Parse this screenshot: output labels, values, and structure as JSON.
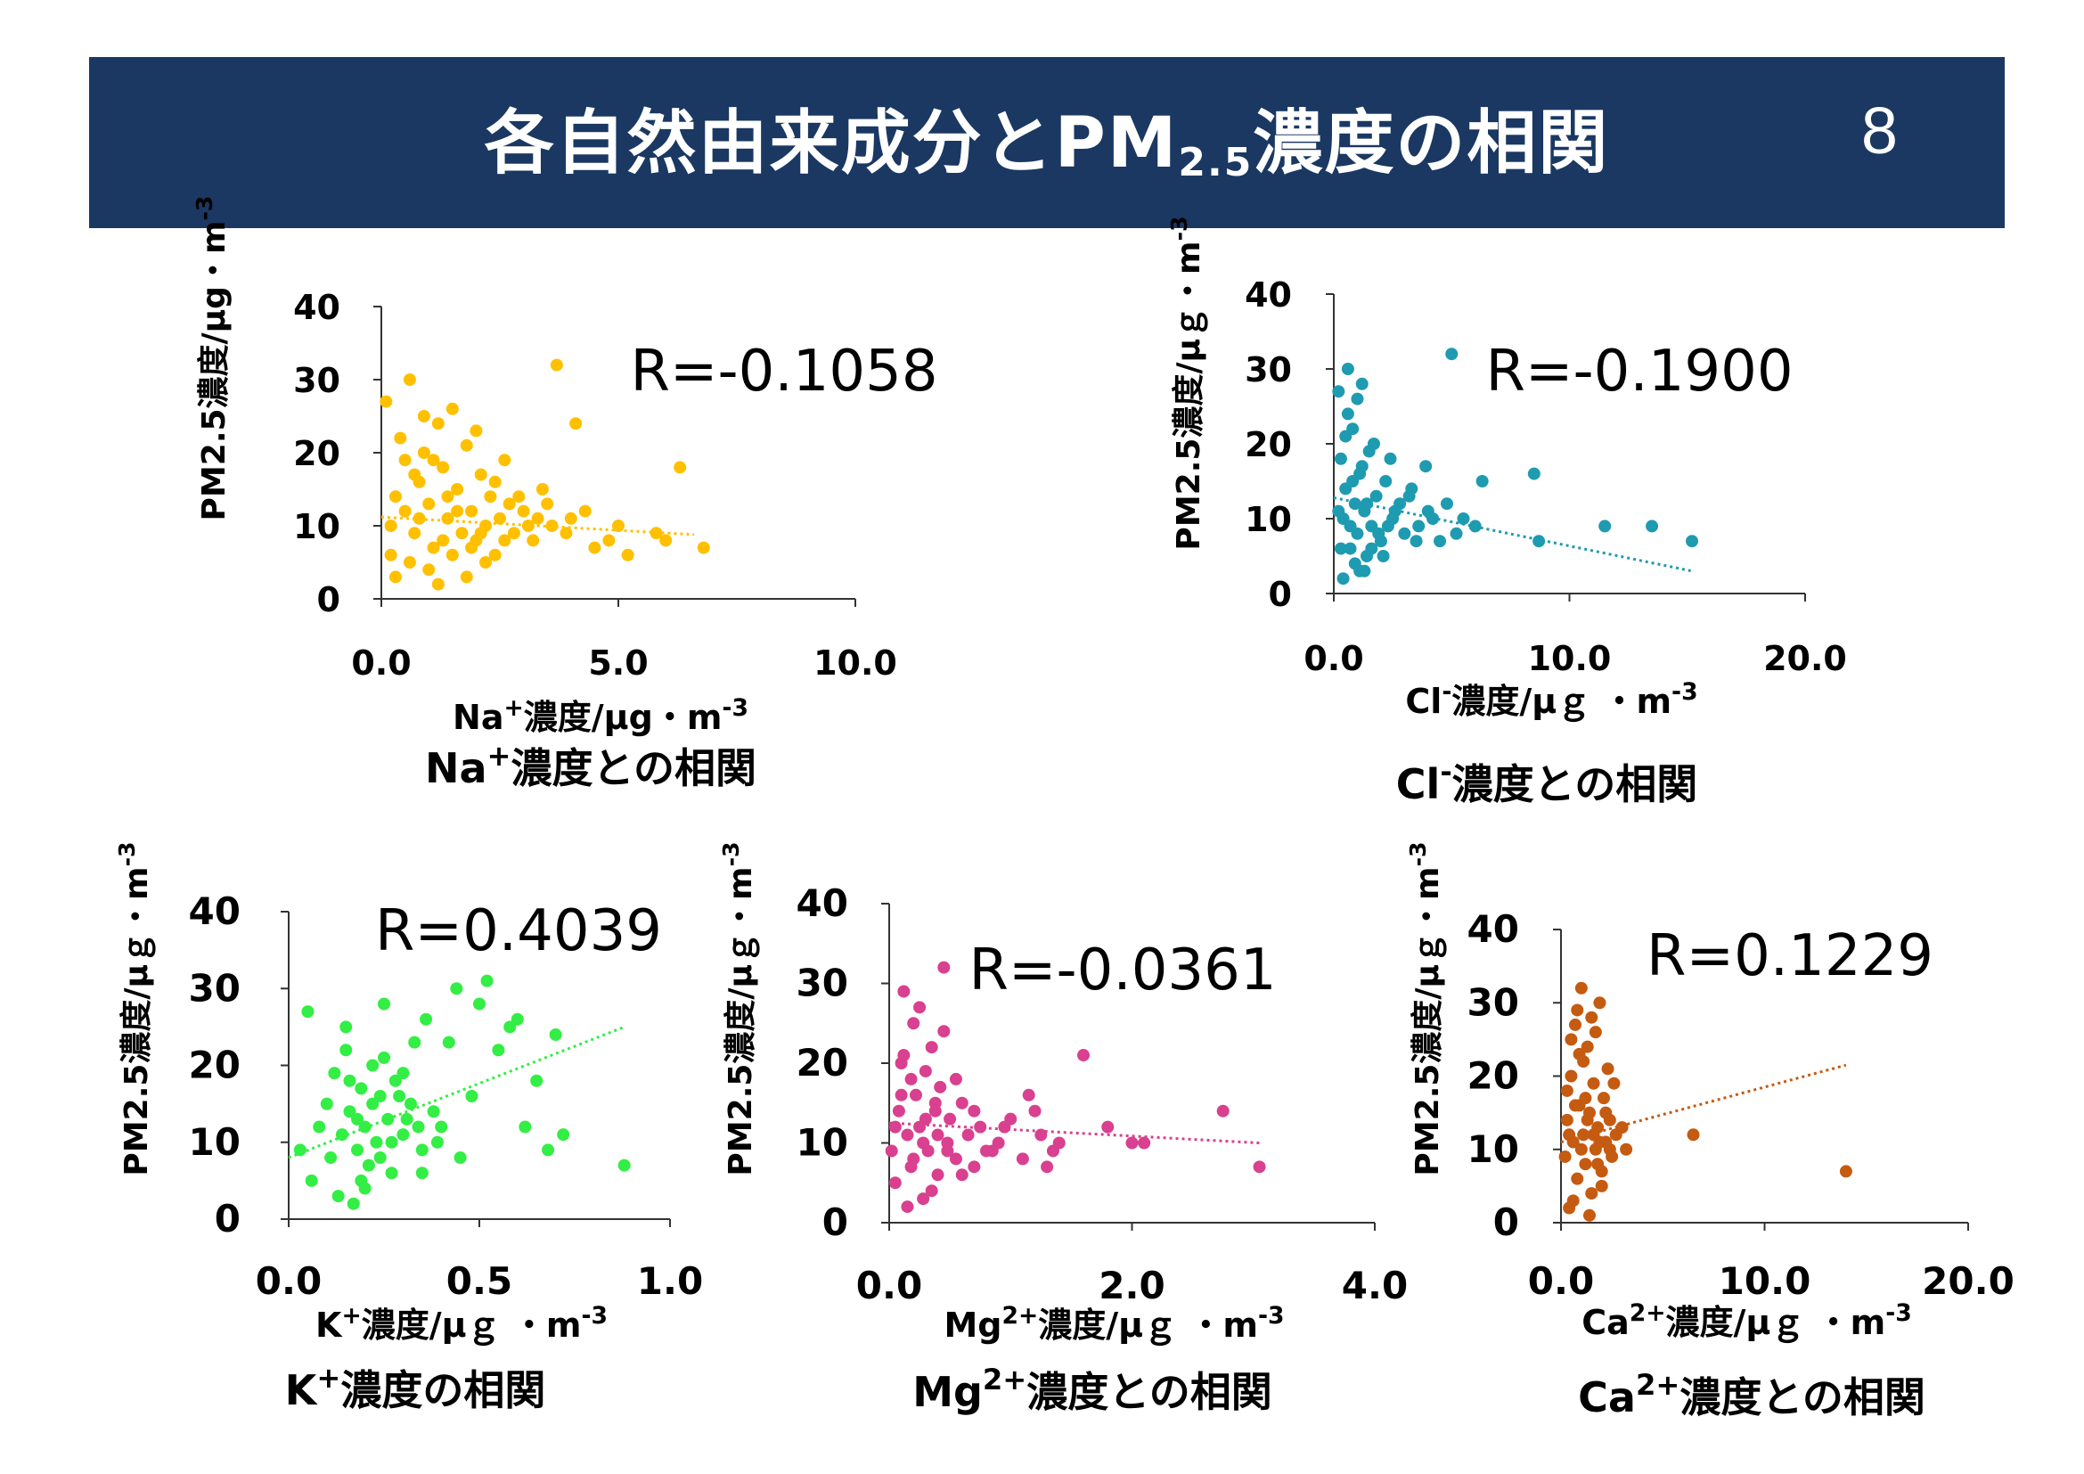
{
  "slide": {
    "title_main": "各自然由来成分とPM",
    "title_sub": "2.5",
    "title_tail": "濃度の相関",
    "page_number": "8"
  },
  "chart_data": [
    {
      "type": "scatter",
      "color": "#ffc000",
      "r_text": "R=-0.1058",
      "ylabel": "PM2.5濃度/μg・m-3",
      "xlabel": "Na+濃度/μg・m-3",
      "caption": "Na+濃度との相関",
      "xlim": [
        0,
        10
      ],
      "ylim": [
        0,
        40
      ],
      "xticks": [
        "0.0",
        "5.0",
        "10.0"
      ],
      "yticks": [
        "0",
        "10",
        "20",
        "30",
        "40"
      ],
      "trendline": [
        [
          0.0,
          11.2
        ],
        [
          6.6,
          8.8
        ]
      ],
      "points": [
        [
          0.1,
          27
        ],
        [
          0.2,
          10
        ],
        [
          0.3,
          14
        ],
        [
          0.5,
          12
        ],
        [
          0.6,
          5
        ],
        [
          0.7,
          9
        ],
        [
          0.8,
          16
        ],
        [
          0.9,
          20
        ],
        [
          1.0,
          13
        ],
        [
          1.1,
          7
        ],
        [
          1.2,
          24
        ],
        [
          1.3,
          18
        ],
        [
          1.4,
          11
        ],
        [
          1.5,
          6
        ],
        [
          1.6,
          15
        ],
        [
          1.7,
          9
        ],
        [
          1.8,
          21
        ],
        [
          1.9,
          12
        ],
        [
          2.0,
          8
        ],
        [
          2.1,
          17
        ],
        [
          2.2,
          10
        ],
        [
          2.3,
          14
        ],
        [
          2.4,
          6
        ],
        [
          2.5,
          11
        ],
        [
          2.6,
          19
        ],
        [
          2.8,
          9
        ],
        [
          3.0,
          12
        ],
        [
          3.2,
          8
        ],
        [
          3.4,
          15
        ],
        [
          3.6,
          10
        ],
        [
          3.7,
          32
        ],
        [
          4.0,
          11
        ],
        [
          4.1,
          24
        ],
        [
          4.5,
          7
        ],
        [
          5.0,
          10
        ],
        [
          5.2,
          6
        ],
        [
          5.8,
          9
        ],
        [
          6.0,
          8
        ],
        [
          6.3,
          18
        ],
        [
          6.8,
          7
        ],
        [
          0.4,
          22
        ],
        [
          0.6,
          30
        ],
        [
          0.9,
          25
        ],
        [
          1.0,
          4
        ],
        [
          1.2,
          2
        ],
        [
          1.5,
          26
        ],
        [
          1.8,
          3
        ],
        [
          2.0,
          23
        ],
        [
          2.2,
          5
        ],
        [
          2.7,
          13
        ],
        [
          0.3,
          3
        ],
        [
          0.7,
          17
        ],
        [
          1.1,
          19
        ],
        [
          1.3,
          8
        ],
        [
          1.6,
          12
        ],
        [
          1.9,
          7
        ],
        [
          2.4,
          16
        ],
        [
          2.9,
          14
        ],
        [
          3.3,
          11
        ],
        [
          3.9,
          9
        ],
        [
          0.2,
          6
        ],
        [
          0.5,
          19
        ],
        [
          0.8,
          11
        ],
        [
          1.4,
          14
        ],
        [
          2.1,
          9
        ],
        [
          2.6,
          8
        ],
        [
          3.1,
          10
        ],
        [
          3.5,
          13
        ],
        [
          4.3,
          12
        ],
        [
          4.8,
          8
        ]
      ]
    },
    {
      "type": "scatter",
      "color": "#1e9bb0",
      "r_text": "R=-0.1900",
      "ylabel": "PM2.5濃度/μｇ・m-3",
      "xlabel": "Cl-濃度/μｇ ・m-3",
      "caption": "Cl-濃度との相関",
      "xlim": [
        0,
        20
      ],
      "ylim": [
        0,
        40
      ],
      "xticks": [
        "0.0",
        "10.0",
        "20.0"
      ],
      "yticks": [
        "0",
        "10",
        "20",
        "30",
        "40"
      ],
      "trendline": [
        [
          0.0,
          12.8
        ],
        [
          15.2,
          3.0
        ]
      ],
      "points": [
        [
          0.2,
          27
        ],
        [
          0.3,
          18
        ],
        [
          0.4,
          10
        ],
        [
          0.5,
          14
        ],
        [
          0.6,
          30
        ],
        [
          0.7,
          6
        ],
        [
          0.8,
          22
        ],
        [
          0.9,
          12
        ],
        [
          1.0,
          8
        ],
        [
          1.1,
          16
        ],
        [
          1.2,
          28
        ],
        [
          1.3,
          11
        ],
        [
          1.4,
          5
        ],
        [
          1.5,
          19
        ],
        [
          1.6,
          9
        ],
        [
          1.8,
          13
        ],
        [
          2.0,
          7
        ],
        [
          2.2,
          15
        ],
        [
          2.5,
          10
        ],
        [
          2.8,
          12
        ],
        [
          3.0,
          8
        ],
        [
          3.3,
          14
        ],
        [
          3.6,
          9
        ],
        [
          4.0,
          11
        ],
        [
          4.5,
          7
        ],
        [
          5.0,
          32
        ],
        [
          5.5,
          10
        ],
        [
          6.0,
          9
        ],
        [
          6.3,
          15
        ],
        [
          8.5,
          16
        ],
        [
          8.7,
          7
        ],
        [
          11.5,
          9
        ],
        [
          13.5,
          9
        ],
        [
          15.2,
          7
        ],
        [
          0.4,
          2
        ],
        [
          0.6,
          24
        ],
        [
          0.9,
          4
        ],
        [
          1.0,
          26
        ],
        [
          1.3,
          3
        ],
        [
          1.7,
          20
        ],
        [
          2.1,
          5
        ],
        [
          2.4,
          18
        ],
        [
          3.2,
          13
        ],
        [
          3.9,
          17
        ],
        [
          4.8,
          12
        ],
        [
          0.3,
          6
        ],
        [
          0.5,
          21
        ],
        [
          0.8,
          15
        ],
        [
          1.1,
          3
        ],
        [
          1.4,
          12
        ],
        [
          1.9,
          8
        ],
        [
          2.6,
          11
        ],
        [
          3.5,
          7
        ],
        [
          4.2,
          10
        ],
        [
          5.2,
          8
        ],
        [
          0.2,
          11
        ],
        [
          0.7,
          9
        ],
        [
          1.2,
          17
        ],
        [
          1.6,
          6
        ],
        [
          2.3,
          9
        ]
      ]
    },
    {
      "type": "scatter",
      "color": "#33ee44",
      "r_text": "R=0.4039",
      "ylabel": "PM2.5濃度/μｇ・m-3",
      "xlabel": "K+濃度/μｇ ・m-3",
      "caption": "K+濃度の相関",
      "xlim": [
        0,
        1
      ],
      "ylim": [
        0,
        40
      ],
      "xticks": [
        "0.0",
        "0.5",
        "1.0"
      ],
      "yticks": [
        "0",
        "10",
        "20",
        "30",
        "40"
      ],
      "trendline": [
        [
          0.0,
          8.0
        ],
        [
          0.88,
          25.0
        ]
      ],
      "points": [
        [
          0.03,
          9
        ],
        [
          0.05,
          27
        ],
        [
          0.06,
          5
        ],
        [
          0.08,
          12
        ],
        [
          0.1,
          15
        ],
        [
          0.11,
          8
        ],
        [
          0.12,
          19
        ],
        [
          0.13,
          3
        ],
        [
          0.14,
          11
        ],
        [
          0.15,
          22
        ],
        [
          0.16,
          14
        ],
        [
          0.17,
          2
        ],
        [
          0.18,
          9
        ],
        [
          0.19,
          17
        ],
        [
          0.2,
          12
        ],
        [
          0.21,
          7
        ],
        [
          0.22,
          20
        ],
        [
          0.23,
          10
        ],
        [
          0.24,
          16
        ],
        [
          0.25,
          28
        ],
        [
          0.26,
          13
        ],
        [
          0.27,
          6
        ],
        [
          0.28,
          18
        ],
        [
          0.3,
          11
        ],
        [
          0.32,
          15
        ],
        [
          0.33,
          23
        ],
        [
          0.35,
          9
        ],
        [
          0.36,
          26
        ],
        [
          0.38,
          14
        ],
        [
          0.4,
          12
        ],
        [
          0.42,
          23
        ],
        [
          0.44,
          30
        ],
        [
          0.45,
          8
        ],
        [
          0.48,
          16
        ],
        [
          0.5,
          28
        ],
        [
          0.52,
          31
        ],
        [
          0.55,
          22
        ],
        [
          0.58,
          25
        ],
        [
          0.6,
          26
        ],
        [
          0.62,
          12
        ],
        [
          0.65,
          18
        ],
        [
          0.68,
          9
        ],
        [
          0.7,
          24
        ],
        [
          0.72,
          11
        ],
        [
          0.88,
          7
        ],
        [
          0.15,
          25
        ],
        [
          0.2,
          4
        ],
        [
          0.25,
          21
        ],
        [
          0.3,
          19
        ],
        [
          0.35,
          6
        ],
        [
          0.18,
          13
        ],
        [
          0.22,
          15
        ],
        [
          0.27,
          10
        ],
        [
          0.31,
          13
        ],
        [
          0.16,
          18
        ],
        [
          0.19,
          5
        ],
        [
          0.24,
          8
        ],
        [
          0.29,
          16
        ],
        [
          0.34,
          12
        ],
        [
          0.39,
          10
        ]
      ]
    },
    {
      "type": "scatter",
      "color": "#d9408f",
      "r_text": "R=-0.0361",
      "ylabel": "PM2.5濃度/μｇ・m-3",
      "xlabel": "Mg2+濃度/μｇ ・m-3",
      "caption": "Mg2+濃度との相関",
      "xlim": [
        0,
        4
      ],
      "ylim": [
        0,
        40
      ],
      "xticks": [
        "0.0",
        "2.0",
        "4.0"
      ],
      "yticks": [
        "0",
        "10",
        "20",
        "30",
        "40"
      ],
      "trendline": [
        [
          0.0,
          12.5
        ],
        [
          3.05,
          10.0
        ]
      ],
      "points": [
        [
          0.02,
          9
        ],
        [
          0.05,
          5
        ],
        [
          0.08,
          14
        ],
        [
          0.1,
          20
        ],
        [
          0.12,
          29
        ],
        [
          0.15,
          11
        ],
        [
          0.18,
          7
        ],
        [
          0.2,
          25
        ],
        [
          0.22,
          16
        ],
        [
          0.25,
          12
        ],
        [
          0.28,
          3
        ],
        [
          0.3,
          19
        ],
        [
          0.32,
          9
        ],
        [
          0.35,
          22
        ],
        [
          0.38,
          14
        ],
        [
          0.4,
          6
        ],
        [
          0.42,
          17
        ],
        [
          0.45,
          32
        ],
        [
          0.48,
          10
        ],
        [
          0.5,
          13
        ],
        [
          0.55,
          8
        ],
        [
          0.6,
          15
        ],
        [
          0.65,
          11
        ],
        [
          0.7,
          7
        ],
        [
          0.75,
          12
        ],
        [
          0.8,
          9
        ],
        [
          0.9,
          10
        ],
        [
          1.0,
          13
        ],
        [
          1.1,
          8
        ],
        [
          1.15,
          16
        ],
        [
          1.2,
          14
        ],
        [
          1.25,
          11
        ],
        [
          1.3,
          7
        ],
        [
          1.4,
          10
        ],
        [
          1.6,
          21
        ],
        [
          1.8,
          12
        ],
        [
          2.0,
          10
        ],
        [
          2.1,
          10
        ],
        [
          2.75,
          14
        ],
        [
          3.05,
          7
        ],
        [
          0.15,
          2
        ],
        [
          0.25,
          27
        ],
        [
          0.35,
          4
        ],
        [
          0.45,
          24
        ],
        [
          0.55,
          18
        ],
        [
          0.05,
          12
        ],
        [
          0.1,
          16
        ],
        [
          0.2,
          8
        ],
        [
          0.3,
          13
        ],
        [
          0.4,
          11
        ],
        [
          0.6,
          6
        ],
        [
          0.7,
          14
        ],
        [
          0.85,
          9
        ],
        [
          0.95,
          12
        ],
        [
          1.35,
          9
        ],
        [
          0.12,
          21
        ],
        [
          0.18,
          18
        ],
        [
          0.28,
          10
        ],
        [
          0.38,
          15
        ],
        [
          0.48,
          9
        ]
      ]
    },
    {
      "type": "scatter",
      "color": "#c55a11",
      "r_text": "R=0.1229",
      "ylabel": "PM2.5濃度/μｇ・m-3",
      "xlabel": "Ca2+濃度/μｇ ・m-3",
      "caption": "Ca2+濃度との相関",
      "xlim": [
        0,
        20
      ],
      "ylim": [
        0,
        40
      ],
      "xticks": [
        "0.0",
        "10.0",
        "20.0"
      ],
      "yticks": [
        "0",
        "10",
        "20",
        "30",
        "40"
      ],
      "trendline": [
        [
          0.0,
          11.0
        ],
        [
          14.0,
          21.5
        ]
      ],
      "points": [
        [
          0.2,
          9
        ],
        [
          0.3,
          14
        ],
        [
          0.4,
          2
        ],
        [
          0.5,
          20
        ],
        [
          0.6,
          11
        ],
        [
          0.7,
          27
        ],
        [
          0.8,
          6
        ],
        [
          0.9,
          16
        ],
        [
          1.0,
          32
        ],
        [
          1.1,
          12
        ],
        [
          1.2,
          8
        ],
        [
          1.3,
          24
        ],
        [
          1.4,
          15
        ],
        [
          1.5,
          4
        ],
        [
          1.6,
          19
        ],
        [
          1.7,
          10
        ],
        [
          1.8,
          13
        ],
        [
          1.9,
          30
        ],
        [
          2.0,
          7
        ],
        [
          2.1,
          17
        ],
        [
          2.2,
          11
        ],
        [
          2.3,
          21
        ],
        [
          2.4,
          14
        ],
        [
          2.5,
          9
        ],
        [
          2.7,
          12
        ],
        [
          3.0,
          13
        ],
        [
          3.2,
          10
        ],
        [
          6.5,
          12
        ],
        [
          14.0,
          7
        ],
        [
          0.5,
          25
        ],
        [
          0.8,
          29
        ],
        [
          1.1,
          22
        ],
        [
          1.4,
          1
        ],
        [
          1.7,
          26
        ],
        [
          2.0,
          5
        ],
        [
          0.3,
          18
        ],
        [
          0.6,
          3
        ],
        [
          0.9,
          23
        ],
        [
          1.2,
          17
        ],
        [
          1.5,
          28
        ],
        [
          1.8,
          8
        ],
        [
          2.2,
          15
        ],
        [
          2.6,
          19
        ],
        [
          0.4,
          12
        ],
        [
          0.7,
          16
        ],
        [
          1.0,
          10
        ],
        [
          1.3,
          14
        ],
        [
          1.6,
          12
        ],
        [
          1.9,
          11
        ],
        [
          2.4,
          10
        ]
      ]
    }
  ]
}
